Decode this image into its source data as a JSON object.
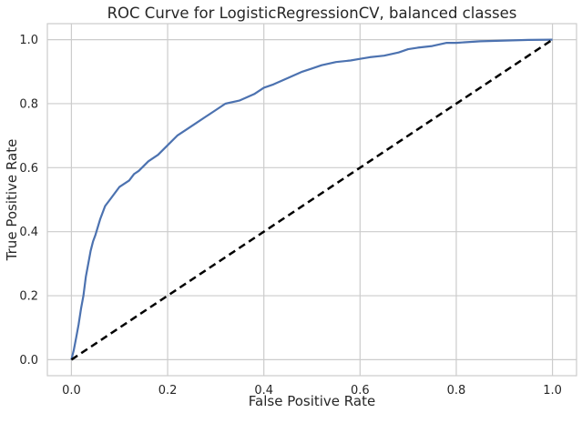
{
  "chart_data": {
    "type": "line",
    "title": "ROC Curve for LogisticRegressionCV, balanced classes",
    "xlabel": "False Positive Rate",
    "ylabel": "True Positive Rate",
    "xlim": [
      -0.05,
      1.05
    ],
    "ylim": [
      -0.05,
      1.05
    ],
    "xticks": [
      0.0,
      0.2,
      0.4,
      0.6,
      0.8,
      1.0
    ],
    "xtick_labels": [
      "0.0",
      "0.2",
      "0.4",
      "0.6",
      "0.8",
      "1.0"
    ],
    "yticks": [
      0.0,
      0.2,
      0.4,
      0.6,
      0.8,
      1.0
    ],
    "ytick_labels": [
      "0.0",
      "0.2",
      "0.4",
      "0.6",
      "0.8",
      "1.0"
    ],
    "grid": true,
    "series": [
      {
        "style": "solid",
        "color": "#4c72b0",
        "x": [
          0.0,
          0.005,
          0.01,
          0.015,
          0.02,
          0.025,
          0.03,
          0.035,
          0.04,
          0.045,
          0.05,
          0.06,
          0.07,
          0.08,
          0.09,
          0.1,
          0.11,
          0.12,
          0.13,
          0.14,
          0.16,
          0.18,
          0.2,
          0.22,
          0.24,
          0.26,
          0.28,
          0.3,
          0.32,
          0.35,
          0.38,
          0.4,
          0.42,
          0.45,
          0.48,
          0.5,
          0.52,
          0.55,
          0.58,
          0.6,
          0.62,
          0.65,
          0.68,
          0.7,
          0.72,
          0.75,
          0.78,
          0.8,
          0.85,
          0.9,
          0.95,
          1.0
        ],
        "y": [
          0.0,
          0.03,
          0.07,
          0.11,
          0.16,
          0.2,
          0.26,
          0.3,
          0.34,
          0.37,
          0.39,
          0.44,
          0.48,
          0.5,
          0.52,
          0.54,
          0.55,
          0.56,
          0.58,
          0.59,
          0.62,
          0.64,
          0.67,
          0.7,
          0.72,
          0.74,
          0.76,
          0.78,
          0.8,
          0.81,
          0.83,
          0.85,
          0.86,
          0.88,
          0.9,
          0.91,
          0.92,
          0.93,
          0.935,
          0.94,
          0.945,
          0.95,
          0.96,
          0.97,
          0.975,
          0.98,
          0.99,
          0.99,
          0.995,
          0.997,
          0.999,
          1.0
        ]
      },
      {
        "style": "dashed",
        "color": "#000000",
        "x": [
          0.0,
          1.0
        ],
        "y": [
          0.0,
          1.0
        ]
      }
    ]
  },
  "colors": {
    "background": "#ffffff",
    "grid": "#cccccc",
    "spine": "#cccccc",
    "roc_line": "#4c72b0",
    "chance_line": "#000000"
  }
}
